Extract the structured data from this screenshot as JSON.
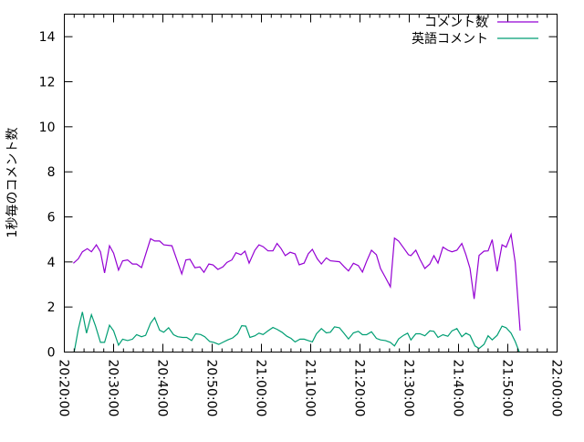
{
  "chart_data": {
    "type": "line",
    "title": "",
    "xlabel": "",
    "ylabel": "1秒毎のコメント数",
    "xlim": [
      "20:20:00",
      "22:00:00"
    ],
    "ylim": [
      0,
      15
    ],
    "x_ticks": [
      "20:20:00",
      "20:30:00",
      "20:40:00",
      "20:50:00",
      "21:00:00",
      "21:10:00",
      "21:20:00",
      "21:30:00",
      "21:40:00",
      "21:50:00",
      "22:00:00"
    ],
    "y_ticks": [
      "0",
      "2",
      "4",
      "6",
      "8",
      "10",
      "12",
      "14"
    ],
    "grid": false,
    "legend_position": "top-right",
    "series": [
      {
        "name": "コメント数",
        "color": "#9400d3",
        "points": [
          [
            "20:21:50",
            3.94
          ],
          [
            "20:22:50",
            4.14
          ],
          [
            "20:23:40",
            4.45
          ],
          [
            "20:24:40",
            4.59
          ],
          [
            "20:25:30",
            4.45
          ],
          [
            "20:26:30",
            4.76
          ],
          [
            "20:27:20",
            4.45
          ],
          [
            "20:28:10",
            3.51
          ],
          [
            "20:29:10",
            4.72
          ],
          [
            "20:30:00",
            4.39
          ],
          [
            "20:31:00",
            3.64
          ],
          [
            "20:31:50",
            4.05
          ],
          [
            "20:32:50",
            4.09
          ],
          [
            "20:33:50",
            3.91
          ],
          [
            "20:34:40",
            3.91
          ],
          [
            "20:35:40",
            3.75
          ],
          [
            "20:37:30",
            5.03
          ],
          [
            "20:38:20",
            4.93
          ],
          [
            "20:39:20",
            4.93
          ],
          [
            "20:40:10",
            4.76
          ],
          [
            "20:41:50",
            4.72
          ],
          [
            "20:43:50",
            3.47
          ],
          [
            "20:44:40",
            4.09
          ],
          [
            "20:45:30",
            4.12
          ],
          [
            "20:46:30",
            3.74
          ],
          [
            "20:47:30",
            3.78
          ],
          [
            "20:48:20",
            3.54
          ],
          [
            "20:49:20",
            3.91
          ],
          [
            "20:50:10",
            3.87
          ],
          [
            "20:51:10",
            3.67
          ],
          [
            "20:52:10",
            3.78
          ],
          [
            "20:53:00",
            3.98
          ],
          [
            "20:54:00",
            4.09
          ],
          [
            "20:54:50",
            4.41
          ],
          [
            "20:55:50",
            4.32
          ],
          [
            "20:56:40",
            4.48
          ],
          [
            "20:57:30",
            3.95
          ],
          [
            "20:58:40",
            4.52
          ],
          [
            "20:59:30",
            4.76
          ],
          [
            "21:00:20",
            4.68
          ],
          [
            "21:01:20",
            4.49
          ],
          [
            "21:02:20",
            4.49
          ],
          [
            "21:03:10",
            4.82
          ],
          [
            "21:04:00",
            4.59
          ],
          [
            "21:04:50",
            4.28
          ],
          [
            "21:05:50",
            4.43
          ],
          [
            "21:06:50",
            4.36
          ],
          [
            "21:07:40",
            3.87
          ],
          [
            "21:08:40",
            3.95
          ],
          [
            "21:09:30",
            4.36
          ],
          [
            "21:10:20",
            4.56
          ],
          [
            "21:11:20",
            4.14
          ],
          [
            "21:12:10",
            3.91
          ],
          [
            "21:13:10",
            4.18
          ],
          [
            "21:14:00",
            4.05
          ],
          [
            "21:15:50",
            4.01
          ],
          [
            "21:16:50",
            3.78
          ],
          [
            "21:17:40",
            3.6
          ],
          [
            "21:18:40",
            3.94
          ],
          [
            "21:19:40",
            3.84
          ],
          [
            "21:20:30",
            3.55
          ],
          [
            "21:21:20",
            4.02
          ],
          [
            "21:22:20",
            4.52
          ],
          [
            "21:23:20",
            4.32
          ],
          [
            "21:24:10",
            3.71
          ],
          [
            "21:25:10",
            3.31
          ],
          [
            "21:26:10",
            2.9
          ],
          [
            "21:27:00",
            5.06
          ],
          [
            "21:27:50",
            4.93
          ],
          [
            "21:28:50",
            4.63
          ],
          [
            "21:29:50",
            4.32
          ],
          [
            "21:30:20",
            4.28
          ],
          [
            "21:31:20",
            4.52
          ],
          [
            "21:32:10",
            4.12
          ],
          [
            "21:33:10",
            3.71
          ],
          [
            "21:34:10",
            3.91
          ],
          [
            "21:35:00",
            4.28
          ],
          [
            "21:35:50",
            3.95
          ],
          [
            "21:36:50",
            4.66
          ],
          [
            "21:37:50",
            4.52
          ],
          [
            "21:38:40",
            4.45
          ],
          [
            "21:39:40",
            4.52
          ],
          [
            "21:40:40",
            4.82
          ],
          [
            "21:41:30",
            4.32
          ],
          [
            "21:42:20",
            3.71
          ],
          [
            "21:43:10",
            2.36
          ],
          [
            "21:44:10",
            4.29
          ],
          [
            "21:45:10",
            4.48
          ],
          [
            "21:46:00",
            4.49
          ],
          [
            "21:46:50",
            4.99
          ],
          [
            "21:47:50",
            3.58
          ],
          [
            "21:48:50",
            4.76
          ],
          [
            "21:49:40",
            4.66
          ],
          [
            "21:50:40",
            5.22
          ],
          [
            "21:51:30",
            3.98
          ],
          [
            "21:52:30",
            0.95
          ]
        ]
      },
      {
        "name": "英語コメント",
        "color": "#009e73",
        "points": [
          [
            "20:22:00",
            0
          ],
          [
            "20:22:50",
            1.01
          ],
          [
            "20:23:40",
            1.78
          ],
          [
            "20:24:30",
            0.84
          ],
          [
            "20:25:30",
            1.66
          ],
          [
            "20:26:20",
            1.15
          ],
          [
            "20:27:20",
            0.43
          ],
          [
            "20:28:10",
            0.43
          ],
          [
            "20:29:10",
            1.19
          ],
          [
            "20:30:00",
            0.94
          ],
          [
            "20:31:00",
            0.31
          ],
          [
            "20:31:50",
            0.57
          ],
          [
            "20:32:50",
            0.51
          ],
          [
            "20:33:50",
            0.57
          ],
          [
            "20:34:40",
            0.77
          ],
          [
            "20:35:40",
            0.68
          ],
          [
            "20:36:30",
            0.74
          ],
          [
            "20:37:30",
            1.28
          ],
          [
            "20:38:20",
            1.53
          ],
          [
            "20:39:20",
            0.97
          ],
          [
            "20:40:10",
            0.88
          ],
          [
            "20:41:10",
            1.08
          ],
          [
            "20:42:10",
            0.77
          ],
          [
            "20:43:00",
            0.68
          ],
          [
            "20:44:00",
            0.65
          ],
          [
            "20:44:50",
            0.65
          ],
          [
            "20:45:50",
            0.51
          ],
          [
            "20:46:40",
            0.81
          ],
          [
            "20:47:40",
            0.78
          ],
          [
            "20:48:30",
            0.68
          ],
          [
            "20:49:30",
            0.47
          ],
          [
            "20:50:20",
            0.43
          ],
          [
            "20:51:20",
            0.34
          ],
          [
            "20:52:20",
            0.45
          ],
          [
            "20:53:10",
            0.54
          ],
          [
            "20:54:10",
            0.63
          ],
          [
            "20:55:10",
            0.81
          ],
          [
            "20:56:00",
            1.17
          ],
          [
            "20:56:50",
            1.15
          ],
          [
            "20:57:40",
            0.65
          ],
          [
            "20:58:40",
            0.72
          ],
          [
            "20:59:30",
            0.84
          ],
          [
            "21:00:20",
            0.78
          ],
          [
            "21:01:20",
            0.94
          ],
          [
            "21:02:20",
            1.09
          ],
          [
            "21:03:10",
            1.01
          ],
          [
            "21:04:10",
            0.88
          ],
          [
            "21:05:10",
            0.7
          ],
          [
            "21:06:00",
            0.61
          ],
          [
            "21:06:50",
            0.45
          ],
          [
            "21:07:50",
            0.57
          ],
          [
            "21:08:40",
            0.57
          ],
          [
            "21:09:30",
            0.51
          ],
          [
            "21:10:20",
            0.45
          ],
          [
            "21:11:10",
            0.81
          ],
          [
            "21:12:10",
            1.04
          ],
          [
            "21:13:10",
            0.85
          ],
          [
            "21:14:00",
            0.88
          ],
          [
            "21:14:50",
            1.12
          ],
          [
            "21:15:50",
            1.08
          ],
          [
            "21:16:50",
            0.81
          ],
          [
            "21:17:40",
            0.58
          ],
          [
            "21:18:40",
            0.85
          ],
          [
            "21:19:40",
            0.92
          ],
          [
            "21:20:30",
            0.77
          ],
          [
            "21:21:20",
            0.77
          ],
          [
            "21:22:20",
            0.9
          ],
          [
            "21:23:20",
            0.61
          ],
          [
            "21:24:10",
            0.54
          ],
          [
            "21:25:10",
            0.51
          ],
          [
            "21:26:10",
            0.43
          ],
          [
            "21:27:00",
            0.27
          ],
          [
            "21:27:50",
            0.58
          ],
          [
            "21:28:50",
            0.74
          ],
          [
            "21:29:40",
            0.84
          ],
          [
            "21:30:20",
            0.54
          ],
          [
            "21:31:20",
            0.81
          ],
          [
            "21:32:10",
            0.81
          ],
          [
            "21:33:10",
            0.72
          ],
          [
            "21:34:10",
            0.94
          ],
          [
            "21:35:00",
            0.92
          ],
          [
            "21:35:50",
            0.65
          ],
          [
            "21:36:50",
            0.77
          ],
          [
            "21:37:50",
            0.7
          ],
          [
            "21:38:40",
            0.94
          ],
          [
            "21:39:40",
            1.04
          ],
          [
            "21:40:40",
            0.68
          ],
          [
            "21:41:30",
            0.84
          ],
          [
            "21:42:20",
            0.74
          ],
          [
            "21:43:20",
            0.27
          ],
          [
            "21:44:10",
            0.16
          ],
          [
            "21:45:10",
            0.34
          ],
          [
            "21:46:00",
            0.72
          ],
          [
            "21:46:50",
            0.54
          ],
          [
            "21:47:50",
            0.74
          ],
          [
            "21:48:50",
            1.15
          ],
          [
            "21:49:40",
            1.08
          ],
          [
            "21:50:40",
            0.84
          ],
          [
            "21:51:30",
            0.47
          ],
          [
            "21:52:20",
            0
          ]
        ]
      }
    ]
  }
}
